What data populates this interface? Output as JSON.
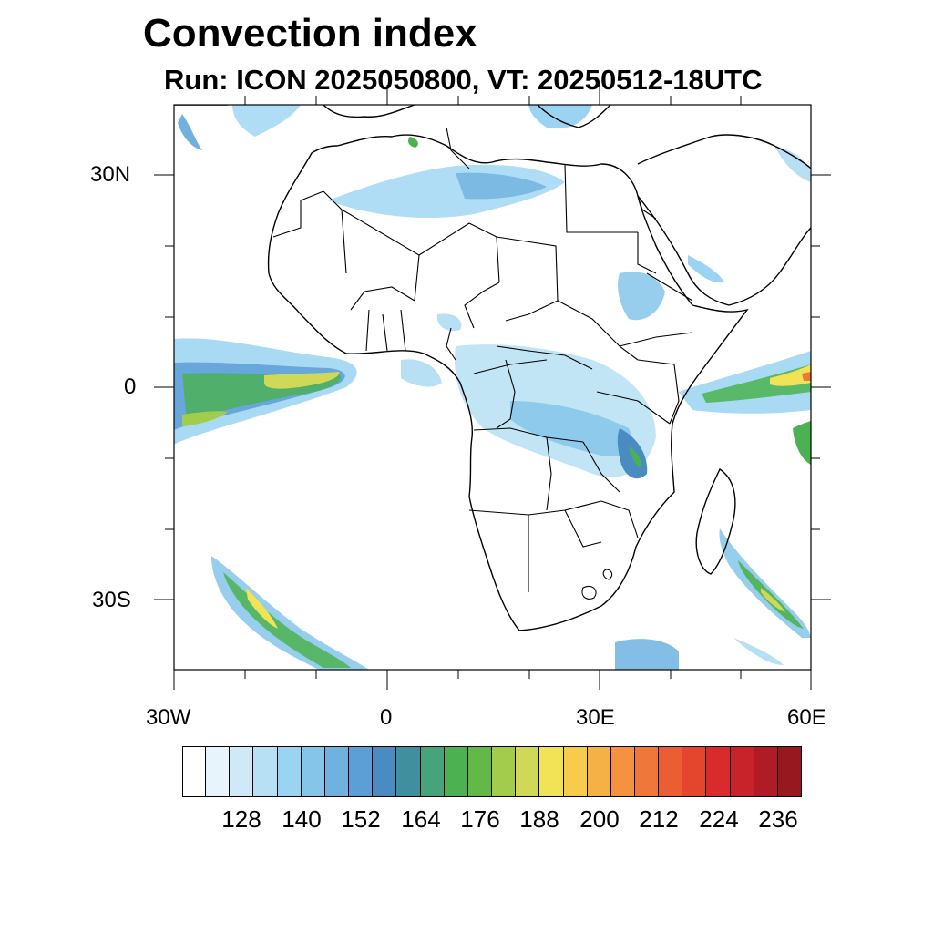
{
  "title": "Convection index",
  "subtitle": "Run: ICON 2025050800,  VT: 20250512-18UTC",
  "axes": {
    "x_ticks": [
      "30W",
      "0",
      "30E",
      "60E"
    ],
    "y_ticks": [
      "30N",
      "0",
      "30S"
    ],
    "lon_range": [
      -30,
      60
    ],
    "lat_range": [
      -40,
      40
    ]
  },
  "colorbar": {
    "labels": [
      "128",
      "140",
      "152",
      "164",
      "176",
      "188",
      "200",
      "212",
      "224",
      "236"
    ],
    "colors": [
      "#ffffff",
      "#e8f4fb",
      "#cfe9f7",
      "#b7e0f5",
      "#9ad4f2",
      "#85c5ea",
      "#6fb2e0",
      "#5c9ed6",
      "#4a8bc2",
      "#3f8f9e",
      "#46a37a",
      "#4cb150",
      "#62b947",
      "#a3cc4c",
      "#cfd957",
      "#f2e255",
      "#f7cb4c",
      "#f6b146",
      "#f39340",
      "#ef773a",
      "#eb5e33",
      "#e3452d",
      "#d92a2c",
      "#c8232b",
      "#b01c25",
      "#98181f"
    ]
  },
  "legend_colors": {
    "low": "#85c5ea",
    "mid": "#4cb150",
    "high": "#f2e255",
    "peak": "#ef773a"
  }
}
